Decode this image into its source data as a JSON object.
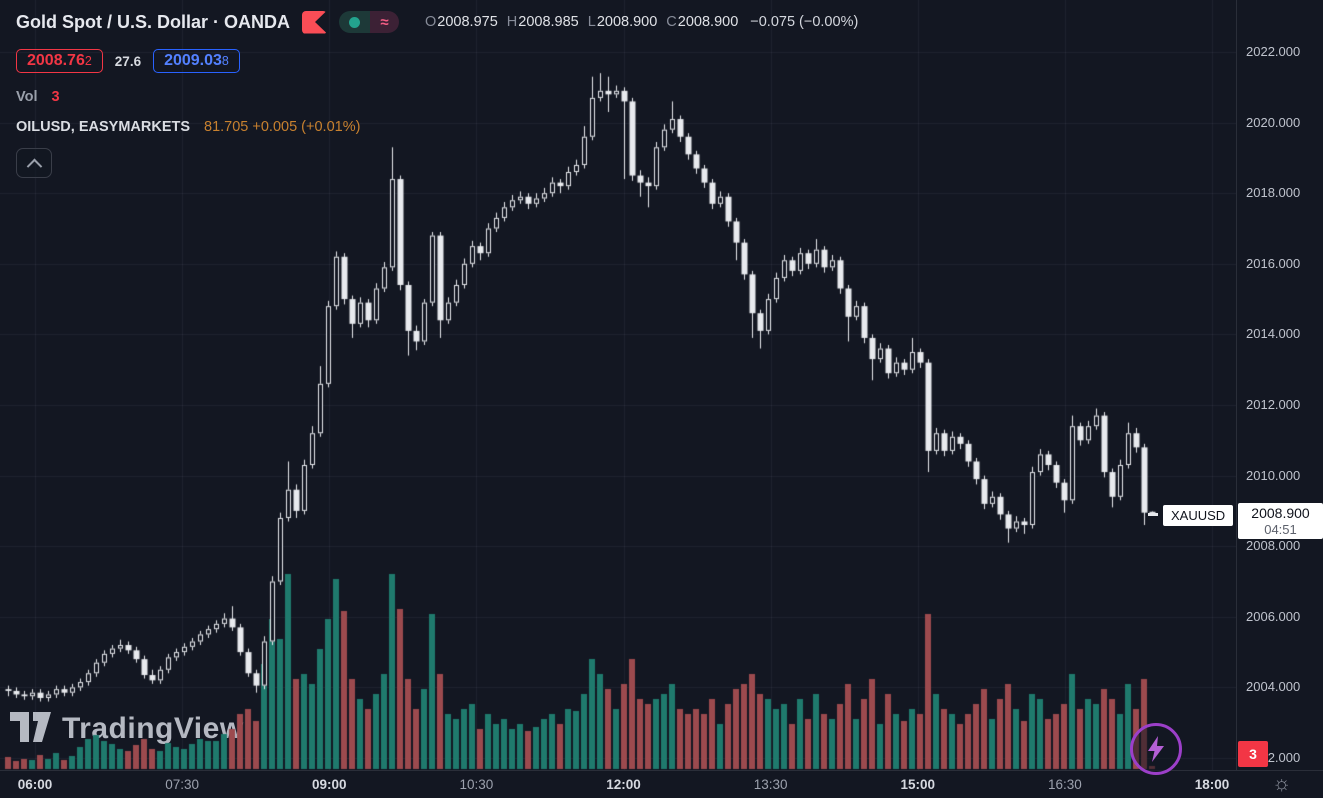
{
  "header": {
    "symbol_title": "Gold Spot / U.S. Dollar · OANDA",
    "ohlc": {
      "o_label": "O",
      "o": "2008.975",
      "h_label": "H",
      "h": "2008.985",
      "l_label": "L",
      "l": "2008.900",
      "c_label": "C",
      "c": "2008.900",
      "change": "−0.075 (−0.00%)"
    },
    "bid_main": "2008.76",
    "bid_pip": "2",
    "spread": "27.6",
    "ask_main": "2009.03",
    "ask_pip": "8",
    "vol_label": "Vol",
    "vol_value": "3",
    "indicator_name": "OILUSD, EASYMARKETS",
    "indicator_value": "81.705 +0.005 (+0.01%)"
  },
  "icons": {
    "approx": "≈",
    "sun": "☼"
  },
  "watermark": {
    "text": "TradingView"
  },
  "price_scale": {
    "last_price_label": "2008.900",
    "countdown": "04:51",
    "symbol_badge": "XAUUSD",
    "volume_badge": "3"
  },
  "chart_data": {
    "type": "candlestick_with_volume",
    "title": "Gold Spot / U.S. Dollar",
    "exchange": "OANDA",
    "symbol": "XAUUSD",
    "interval_minutes": 5,
    "last_price": 2008.9,
    "y_axis": {
      "min": 2001.6,
      "max": 2022.6,
      "tick_step": 2,
      "ticks": [
        {
          "price": 2022,
          "label": "2022.000"
        },
        {
          "price": 2020,
          "label": "2020.000"
        },
        {
          "price": 2018,
          "label": "2018.000"
        },
        {
          "price": 2016,
          "label": "2016.000"
        },
        {
          "price": 2014,
          "label": "2014.000"
        },
        {
          "price": 2012,
          "label": "2012.000"
        },
        {
          "price": 2010,
          "label": "2010.000"
        },
        {
          "price": 2008,
          "label": "2008.000"
        },
        {
          "price": 2006,
          "label": "2006.000"
        },
        {
          "price": 2004,
          "label": "2004.000"
        },
        {
          "price": 2002,
          "label": "2002.000"
        }
      ]
    },
    "x_axis": {
      "labels": [
        {
          "label": "06:00",
          "bold": true
        },
        {
          "label": "07:30",
          "bold": false
        },
        {
          "label": "09:00",
          "bold": true
        },
        {
          "label": "10:30",
          "bold": false
        },
        {
          "label": "12:00",
          "bold": true
        },
        {
          "label": "13:30",
          "bold": false
        },
        {
          "label": "15:00",
          "bold": true
        },
        {
          "label": "16:30",
          "bold": false
        },
        {
          "label": "18:00",
          "bold": true
        }
      ]
    },
    "colors": {
      "candle": "#e8eaee",
      "background": "#131722",
      "grid": "rgba(134,142,162,0.10)",
      "volume_up": "#1f7a6d",
      "volume_down": "#9c4a4e",
      "accent_red": "#f23645",
      "accent_blue": "#2962ff",
      "accent_orange": "#c8812f"
    },
    "candles": [
      [
        2003.95,
        2004.05,
        2003.75,
        2003.9
      ],
      [
        2003.9,
        2004.0,
        2003.7,
        2003.8
      ],
      [
        2003.8,
        2003.9,
        2003.65,
        2003.75
      ],
      [
        2003.75,
        2003.95,
        2003.65,
        2003.85
      ],
      [
        2003.85,
        2003.95,
        2003.6,
        2003.7
      ],
      [
        2003.7,
        2003.9,
        2003.6,
        2003.8
      ],
      [
        2003.8,
        2004.05,
        2003.7,
        2003.95
      ],
      [
        2003.95,
        2004.05,
        2003.75,
        2003.85
      ],
      [
        2003.85,
        2004.1,
        2003.75,
        2004.0
      ],
      [
        2004.0,
        2004.25,
        2003.9,
        2004.15
      ],
      [
        2004.15,
        2004.5,
        2004.05,
        2004.4
      ],
      [
        2004.4,
        2004.8,
        2004.3,
        2004.7
      ],
      [
        2004.7,
        2005.05,
        2004.6,
        2004.95
      ],
      [
        2004.95,
        2005.2,
        2004.85,
        2005.1
      ],
      [
        2005.1,
        2005.35,
        2005.0,
        2005.2
      ],
      [
        2005.2,
        2005.3,
        2004.95,
        2005.05
      ],
      [
        2005.05,
        2005.15,
        2004.7,
        2004.8
      ],
      [
        2004.8,
        2004.9,
        2004.25,
        2004.35
      ],
      [
        2004.35,
        2004.5,
        2004.1,
        2004.2
      ],
      [
        2004.2,
        2004.6,
        2004.1,
        2004.5
      ],
      [
        2004.5,
        2004.95,
        2004.4,
        2004.85
      ],
      [
        2004.85,
        2005.1,
        2004.75,
        2005.0
      ],
      [
        2005.0,
        2005.25,
        2004.9,
        2005.15
      ],
      [
        2005.15,
        2005.4,
        2005.05,
        2005.3
      ],
      [
        2005.3,
        2005.6,
        2005.2,
        2005.5
      ],
      [
        2005.5,
        2005.75,
        2005.4,
        2005.65
      ],
      [
        2005.65,
        2005.9,
        2005.55,
        2005.8
      ],
      [
        2005.8,
        2006.1,
        2005.7,
        2005.95
      ],
      [
        2005.95,
        2006.3,
        2005.6,
        2005.7
      ],
      [
        2005.7,
        2005.8,
        2004.9,
        2005.0
      ],
      [
        2005.0,
        2005.1,
        2004.3,
        2004.4
      ],
      [
        2004.4,
        2004.5,
        2003.85,
        2004.05
      ],
      [
        2004.05,
        2005.45,
        2003.95,
        2005.3
      ],
      [
        2005.3,
        2007.15,
        2005.2,
        2007.0
      ],
      [
        2007.0,
        2008.95,
        2006.9,
        2008.8
      ],
      [
        2008.8,
        2010.4,
        2008.7,
        2009.6
      ],
      [
        2009.6,
        2009.75,
        2008.8,
        2009.0
      ],
      [
        2009.0,
        2010.45,
        2008.9,
        2010.3
      ],
      [
        2010.3,
        2011.4,
        2010.2,
        2011.2
      ],
      [
        2011.2,
        2013.1,
        2011.1,
        2012.6
      ],
      [
        2012.6,
        2014.95,
        2012.5,
        2014.8
      ],
      [
        2014.8,
        2016.35,
        2014.7,
        2016.2
      ],
      [
        2016.2,
        2016.3,
        2014.85,
        2015.0
      ],
      [
        2015.0,
        2015.1,
        2013.9,
        2014.3
      ],
      [
        2014.3,
        2015.05,
        2014.2,
        2014.9
      ],
      [
        2014.9,
        2015.0,
        2014.2,
        2014.4
      ],
      [
        2014.4,
        2015.45,
        2014.3,
        2015.3
      ],
      [
        2015.3,
        2016.05,
        2015.2,
        2015.9
      ],
      [
        2015.9,
        2019.3,
        2015.8,
        2018.4
      ],
      [
        2018.4,
        2018.5,
        2015.25,
        2015.4
      ],
      [
        2015.4,
        2015.5,
        2013.4,
        2014.1
      ],
      [
        2014.1,
        2014.25,
        2013.55,
        2013.8
      ],
      [
        2013.8,
        2015.0,
        2013.7,
        2014.9
      ],
      [
        2014.9,
        2016.9,
        2014.8,
        2016.8
      ],
      [
        2016.8,
        2016.9,
        2013.9,
        2014.4
      ],
      [
        2014.4,
        2015.05,
        2014.3,
        2014.9
      ],
      [
        2014.9,
        2015.55,
        2014.8,
        2015.4
      ],
      [
        2015.4,
        2016.15,
        2015.3,
        2016.0
      ],
      [
        2016.0,
        2016.65,
        2015.9,
        2016.5
      ],
      [
        2016.5,
        2016.6,
        2016.1,
        2016.3
      ],
      [
        2016.3,
        2017.15,
        2016.2,
        2017.0
      ],
      [
        2017.0,
        2017.45,
        2016.9,
        2017.3
      ],
      [
        2017.3,
        2017.75,
        2017.2,
        2017.6
      ],
      [
        2017.6,
        2017.95,
        2017.5,
        2017.8
      ],
      [
        2017.8,
        2018.05,
        2017.7,
        2017.9
      ],
      [
        2017.9,
        2018.0,
        2017.55,
        2017.7
      ],
      [
        2017.7,
        2018.0,
        2017.6,
        2017.85
      ],
      [
        2017.85,
        2018.15,
        2017.75,
        2018.0
      ],
      [
        2018.0,
        2018.45,
        2017.9,
        2018.3
      ],
      [
        2018.3,
        2018.4,
        2018.0,
        2018.2
      ],
      [
        2018.2,
        2018.75,
        2018.1,
        2018.6
      ],
      [
        2018.6,
        2018.95,
        2018.5,
        2018.8
      ],
      [
        2018.8,
        2019.9,
        2018.7,
        2019.6
      ],
      [
        2019.6,
        2021.3,
        2019.5,
        2020.7
      ],
      [
        2020.7,
        2021.4,
        2020.6,
        2020.9
      ],
      [
        2020.9,
        2021.3,
        2020.3,
        2020.8
      ],
      [
        2020.8,
        2021.05,
        2020.7,
        2020.9
      ],
      [
        2020.9,
        2021.0,
        2018.4,
        2020.6
      ],
      [
        2020.6,
        2020.7,
        2018.35,
        2018.5
      ],
      [
        2018.5,
        2018.65,
        2017.9,
        2018.3
      ],
      [
        2018.3,
        2018.45,
        2017.6,
        2018.2
      ],
      [
        2018.2,
        2019.45,
        2018.1,
        2019.3
      ],
      [
        2019.3,
        2019.95,
        2019.2,
        2019.8
      ],
      [
        2019.8,
        2020.6,
        2019.7,
        2020.1
      ],
      [
        2020.1,
        2020.2,
        2019.45,
        2019.6
      ],
      [
        2019.6,
        2019.7,
        2018.95,
        2019.1
      ],
      [
        2019.1,
        2019.2,
        2018.55,
        2018.7
      ],
      [
        2018.7,
        2018.8,
        2018.15,
        2018.3
      ],
      [
        2018.3,
        2018.4,
        2017.55,
        2017.7
      ],
      [
        2017.7,
        2018.05,
        2017.6,
        2017.9
      ],
      [
        2017.9,
        2018.0,
        2017.05,
        2017.2
      ],
      [
        2017.2,
        2017.3,
        2016.1,
        2016.6
      ],
      [
        2016.6,
        2016.7,
        2015.55,
        2015.7
      ],
      [
        2015.7,
        2015.8,
        2013.9,
        2014.6
      ],
      [
        2014.6,
        2014.7,
        2013.6,
        2014.1
      ],
      [
        2014.1,
        2015.15,
        2014.0,
        2015.0
      ],
      [
        2015.0,
        2015.75,
        2014.9,
        2015.6
      ],
      [
        2015.6,
        2016.25,
        2015.5,
        2016.1
      ],
      [
        2016.1,
        2016.2,
        2015.65,
        2015.8
      ],
      [
        2015.8,
        2016.45,
        2015.7,
        2016.3
      ],
      [
        2016.3,
        2016.4,
        2015.85,
        2016.0
      ],
      [
        2016.0,
        2016.7,
        2015.9,
        2016.4
      ],
      [
        2016.4,
        2016.5,
        2015.75,
        2015.9
      ],
      [
        2015.9,
        2016.25,
        2015.8,
        2016.1
      ],
      [
        2016.1,
        2016.2,
        2015.15,
        2015.3
      ],
      [
        2015.3,
        2015.4,
        2013.8,
        2014.5
      ],
      [
        2014.5,
        2014.95,
        2014.4,
        2014.8
      ],
      [
        2014.8,
        2014.9,
        2013.75,
        2013.9
      ],
      [
        2013.9,
        2014.0,
        2012.7,
        2013.3
      ],
      [
        2013.3,
        2013.75,
        2013.2,
        2013.6
      ],
      [
        2013.6,
        2013.7,
        2012.75,
        2012.9
      ],
      [
        2012.9,
        2013.35,
        2012.8,
        2013.2
      ],
      [
        2013.2,
        2013.3,
        2012.85,
        2013.0
      ],
      [
        2013.0,
        2013.9,
        2012.9,
        2013.5
      ],
      [
        2013.5,
        2013.6,
        2013.05,
        2013.2
      ],
      [
        2013.2,
        2013.3,
        2010.1,
        2010.7
      ],
      [
        2010.7,
        2011.35,
        2010.6,
        2011.2
      ],
      [
        2011.2,
        2011.3,
        2010.55,
        2010.7
      ],
      [
        2010.7,
        2011.25,
        2010.6,
        2011.1
      ],
      [
        2011.1,
        2011.2,
        2010.75,
        2010.9
      ],
      [
        2010.9,
        2011.0,
        2010.25,
        2010.4
      ],
      [
        2010.4,
        2010.5,
        2009.75,
        2009.9
      ],
      [
        2009.9,
        2010.0,
        2009.05,
        2009.2
      ],
      [
        2009.2,
        2009.55,
        2009.1,
        2009.4
      ],
      [
        2009.4,
        2009.5,
        2008.75,
        2008.9
      ],
      [
        2008.9,
        2009.0,
        2008.1,
        2008.5
      ],
      [
        2008.5,
        2008.85,
        2008.4,
        2008.7
      ],
      [
        2008.7,
        2008.8,
        2008.35,
        2008.6
      ],
      [
        2008.6,
        2010.25,
        2008.5,
        2010.1
      ],
      [
        2010.1,
        2010.75,
        2010.0,
        2010.6
      ],
      [
        2010.6,
        2010.7,
        2010.15,
        2010.3
      ],
      [
        2010.3,
        2010.4,
        2009.65,
        2009.8
      ],
      [
        2009.8,
        2009.9,
        2008.95,
        2009.3
      ],
      [
        2009.3,
        2011.7,
        2009.2,
        2011.4
      ],
      [
        2011.4,
        2011.5,
        2010.85,
        2011.0
      ],
      [
        2011.0,
        2011.55,
        2010.9,
        2011.4
      ],
      [
        2011.4,
        2011.9,
        2011.3,
        2011.7
      ],
      [
        2011.7,
        2011.8,
        2009.95,
        2010.1
      ],
      [
        2010.1,
        2010.2,
        2009.1,
        2009.4
      ],
      [
        2009.4,
        2010.45,
        2009.3,
        2010.3
      ],
      [
        2010.3,
        2011.5,
        2010.2,
        2011.2
      ],
      [
        2011.2,
        2011.35,
        2010.65,
        2010.8
      ],
      [
        2010.8,
        2010.9,
        2008.6,
        2008.95
      ],
      [
        2008.975,
        2008.985,
        2008.9,
        2008.9
      ]
    ],
    "volumes": [
      12,
      8,
      10,
      9,
      14,
      10,
      16,
      9,
      13,
      22,
      30,
      34,
      28,
      25,
      20,
      18,
      24,
      30,
      20,
      18,
      26,
      22,
      20,
      25,
      30,
      28,
      28,
      35,
      40,
      55,
      60,
      48,
      105,
      150,
      130,
      195,
      90,
      95,
      85,
      120,
      150,
      190,
      158,
      90,
      70,
      60,
      75,
      95,
      195,
      160,
      90,
      60,
      80,
      155,
      95,
      55,
      50,
      60,
      65,
      40,
      55,
      45,
      50,
      40,
      45,
      38,
      42,
      50,
      55,
      45,
      60,
      58,
      75,
      110,
      95,
      80,
      60,
      85,
      110,
      70,
      65,
      70,
      75,
      85,
      60,
      55,
      60,
      55,
      70,
      45,
      65,
      80,
      85,
      95,
      75,
      70,
      60,
      65,
      45,
      70,
      50,
      75,
      55,
      50,
      65,
      85,
      50,
      70,
      90,
      45,
      75,
      55,
      48,
      60,
      55,
      155,
      75,
      60,
      55,
      45,
      55,
      65,
      80,
      50,
      70,
      85,
      60,
      48,
      75,
      70,
      50,
      55,
      65,
      95,
      60,
      70,
      65,
      80,
      70,
      55,
      85,
      60,
      90,
      3
    ]
  }
}
